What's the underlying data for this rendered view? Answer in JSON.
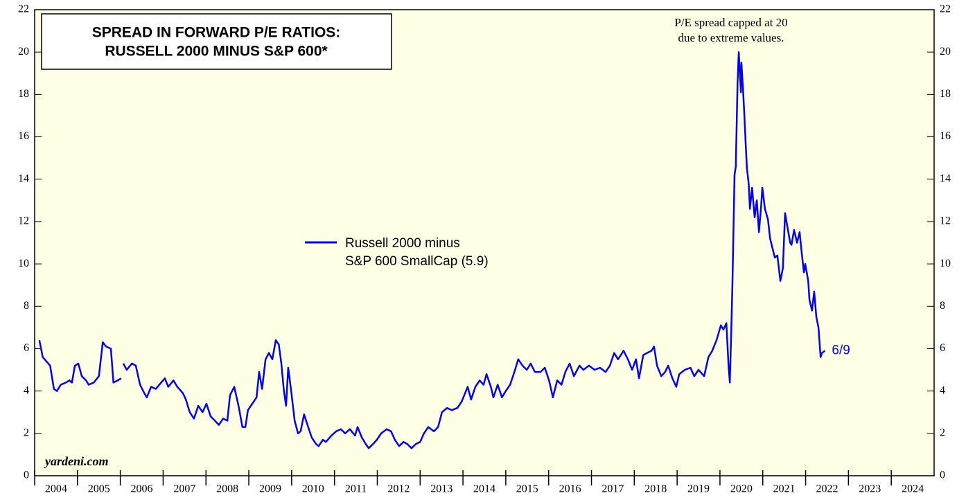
{
  "chart_data": {
    "type": "line",
    "title": [
      "SPREAD IN FORWARD P/E RATIOS:",
      "RUSSELL 2000 MINUS S&P 600*"
    ],
    "annotation": [
      "P/E spread capped at 20",
      "due to extreme values."
    ],
    "end_label": "6/9",
    "source": "yardeni.com",
    "xlim": [
      2004,
      2025
    ],
    "xticks": [
      2004,
      2005,
      2006,
      2007,
      2008,
      2009,
      2010,
      2011,
      2012,
      2013,
      2014,
      2015,
      2016,
      2017,
      2018,
      2019,
      2020,
      2021,
      2022,
      2023,
      2024
    ],
    "ylim": [
      0,
      22
    ],
    "yticks": [
      0,
      2,
      4,
      6,
      8,
      10,
      12,
      14,
      16,
      18,
      20,
      22
    ],
    "background": "#ffffe6",
    "series": [
      {
        "name": [
          "Russell 2000 minus",
          "S&P 600 SmallCap (5.9)"
        ],
        "color": "#0000ff",
        "x": [
          2004.11,
          2004.19,
          2004.36,
          2004.45,
          2004.52,
          2004.61,
          2004.73,
          2004.81,
          2004.87,
          2004.94,
          2005.02,
          2005.1,
          2005.2,
          2005.26,
          2005.38,
          2005.5,
          2005.59,
          2005.67,
          2005.78,
          2005.84,
          2005.94,
          2006.02,
          2006.04,
          2006.07,
          2006.15,
          2006.27,
          2006.36,
          2006.46,
          2006.56,
          2006.62,
          2006.72,
          2006.83,
          2006.91,
          2007.04,
          2007.12,
          2007.24,
          2007.33,
          2007.46,
          2007.53,
          2007.62,
          2007.72,
          2007.82,
          2007.92,
          2008.01,
          2008.11,
          2008.21,
          2008.3,
          2008.4,
          2008.5,
          2008.56,
          2008.66,
          2008.76,
          2008.85,
          2008.92,
          2008.98,
          2009.08,
          2009.18,
          2009.24,
          2009.31,
          2009.39,
          2009.47,
          2009.55,
          2009.63,
          2009.7,
          2009.76,
          2009.82,
          2009.87,
          2009.92,
          2009.99,
          2010.07,
          2010.15,
          2010.21,
          2010.29,
          2010.37,
          2010.47,
          2010.57,
          2010.63,
          2010.73,
          2010.8,
          2010.93,
          2011.04,
          2011.15,
          2011.25,
          2011.36,
          2011.48,
          2011.54,
          2011.64,
          2011.73,
          2011.8,
          2011.9,
          2011.99,
          2012.09,
          2012.22,
          2012.32,
          2012.41,
          2012.51,
          2012.61,
          2012.7,
          2012.8,
          2012.9,
          2013.0,
          2013.09,
          2013.19,
          2013.32,
          2013.42,
          2013.51,
          2013.63,
          2013.74,
          2013.87,
          2013.97,
          2014.03,
          2014.11,
          2014.19,
          2014.29,
          2014.39,
          2014.48,
          2014.55,
          2014.65,
          2014.71,
          2014.81,
          2014.91,
          2015.0,
          2015.1,
          2015.2,
          2015.29,
          2015.39,
          2015.49,
          2015.58,
          2015.68,
          2015.81,
          2015.91,
          2016.01,
          2016.1,
          2016.2,
          2016.3,
          2016.39,
          2016.49,
          2016.59,
          2016.72,
          2016.81,
          2016.94,
          2017.07,
          2017.2,
          2017.33,
          2017.43,
          2017.53,
          2017.62,
          2017.75,
          2017.85,
          2017.95,
          2018.04,
          2018.11,
          2018.21,
          2018.3,
          2018.4,
          2018.46,
          2018.53,
          2018.63,
          2018.72,
          2018.79,
          2018.89,
          2018.98,
          2019.05,
          2019.18,
          2019.31,
          2019.4,
          2019.5,
          2019.63,
          2019.73,
          2019.82,
          2019.92,
          2020.02,
          2020.08,
          2020.15,
          2020.2,
          2020.23,
          2020.26,
          2020.29,
          2020.34,
          2020.37,
          2020.41,
          2020.44,
          2020.49,
          2020.5,
          2020.54,
          2020.57,
          2020.6,
          2020.63,
          2020.67,
          2020.7,
          2020.75,
          2020.81,
          2020.86,
          2020.91,
          2020.96,
          2020.99,
          2021.05,
          2021.12,
          2021.17,
          2021.28,
          2021.34,
          2021.41,
          2021.47,
          2021.52,
          2021.57,
          2021.64,
          2021.67,
          2021.73,
          2021.8,
          2021.86,
          2021.91,
          2021.96,
          2021.99,
          2022.06,
          2022.09,
          2022.15,
          2022.2,
          2022.25,
          2022.3,
          2022.35,
          2022.38,
          2022.45
        ],
        "values": [
          6.4,
          5.6,
          5.2,
          4.1,
          4.0,
          4.3,
          4.4,
          4.5,
          4.4,
          5.2,
          5.3,
          4.7,
          4.5,
          4.3,
          4.4,
          4.7,
          6.3,
          6.1,
          6.0,
          4.4,
          4.5,
          4.6,
          null,
          5.3,
          5.0,
          5.3,
          5.2,
          4.3,
          3.9,
          3.7,
          4.2,
          4.1,
          4.3,
          4.6,
          4.2,
          4.5,
          4.2,
          3.9,
          3.6,
          3.0,
          2.7,
          3.3,
          3.0,
          3.4,
          2.8,
          2.6,
          2.4,
          2.7,
          2.6,
          3.8,
          4.2,
          3.3,
          2.3,
          2.3,
          3.1,
          3.4,
          3.7,
          4.9,
          4.1,
          5.5,
          5.8,
          5.5,
          6.4,
          6.2,
          5.3,
          4.0,
          3.3,
          5.1,
          4.0,
          2.6,
          2.0,
          2.1,
          2.9,
          2.4,
          1.8,
          1.5,
          1.4,
          1.7,
          1.6,
          1.9,
          2.1,
          2.2,
          2.0,
          2.2,
          1.9,
          2.3,
          1.8,
          1.5,
          1.3,
          1.5,
          1.7,
          2.0,
          2.2,
          2.1,
          1.7,
          1.4,
          1.6,
          1.5,
          1.3,
          1.5,
          1.6,
          2.0,
          2.3,
          2.1,
          2.3,
          3.0,
          3.2,
          3.1,
          3.2,
          3.5,
          3.8,
          4.2,
          3.6,
          4.2,
          4.5,
          4.3,
          4.8,
          4.2,
          3.7,
          4.3,
          3.7,
          4.0,
          4.3,
          4.9,
          5.5,
          5.2,
          5.0,
          5.3,
          4.9,
          4.9,
          5.1,
          4.5,
          3.7,
          4.5,
          4.3,
          4.9,
          5.3,
          4.7,
          5.2,
          5.0,
          5.2,
          5.0,
          5.1,
          4.9,
          5.2,
          5.8,
          5.5,
          5.9,
          5.5,
          5.0,
          5.5,
          4.6,
          5.7,
          5.8,
          5.9,
          6.1,
          5.2,
          4.7,
          4.9,
          5.2,
          4.6,
          4.2,
          4.8,
          5.0,
          5.1,
          4.7,
          5.0,
          4.7,
          5.6,
          5.9,
          6.4,
          7.1,
          6.9,
          7.2,
          5.2,
          4.4,
          6.5,
          9.0,
          14.2,
          14.6,
          18.5,
          20.0,
          18.1,
          19.5,
          18.2,
          17.0,
          15.7,
          14.5,
          13.8,
          12.6,
          13.6,
          12.2,
          13.0,
          11.5,
          12.7,
          13.6,
          12.6,
          12.1,
          11.2,
          10.3,
          10.4,
          9.2,
          9.8,
          12.4,
          11.8,
          11.0,
          10.9,
          11.6,
          11.0,
          11.5,
          10.5,
          9.6,
          10.0,
          9.2,
          8.3,
          7.8,
          8.7,
          7.5,
          7.0,
          5.6,
          5.8,
          5.9
        ]
      }
    ]
  }
}
